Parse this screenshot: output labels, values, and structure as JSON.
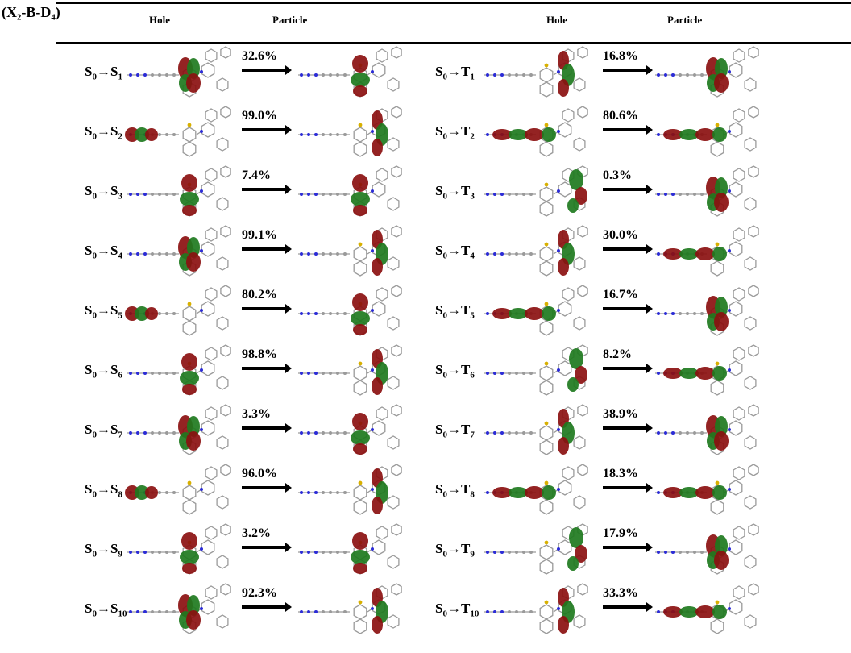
{
  "title": "(X₂-B-D₄)",
  "headers": {
    "hole": "Hole",
    "particle": "Particle"
  },
  "colors": {
    "positive_lobe": "#8b1010",
    "negative_lobe": "#1e7a1e",
    "nitrogen": "#2b2bd6",
    "sulfur": "#d8b000",
    "skeleton": "#9a9a9a"
  },
  "left_rows": [
    {
      "state": "S",
      "index": "1",
      "percent": "32.6%"
    },
    {
      "state": "S",
      "index": "2",
      "percent": "99.0%"
    },
    {
      "state": "S",
      "index": "3",
      "percent": "7.4%"
    },
    {
      "state": "S",
      "index": "4",
      "percent": "99.1%"
    },
    {
      "state": "S",
      "index": "5",
      "percent": "80.2%"
    },
    {
      "state": "S",
      "index": "6",
      "percent": "98.8%"
    },
    {
      "state": "S",
      "index": "7",
      "percent": "3.3%"
    },
    {
      "state": "S",
      "index": "8",
      "percent": "96.0%"
    },
    {
      "state": "S",
      "index": "9",
      "percent": "3.2%"
    },
    {
      "state": "S",
      "index": "10",
      "percent": "92.3%"
    }
  ],
  "right_rows": [
    {
      "state": "T",
      "index": "1",
      "percent": "16.8%"
    },
    {
      "state": "T",
      "index": "2",
      "percent": "80.6%"
    },
    {
      "state": "T",
      "index": "3",
      "percent": "0.3%"
    },
    {
      "state": "T",
      "index": "4",
      "percent": "30.0%"
    },
    {
      "state": "T",
      "index": "5",
      "percent": "16.7%"
    },
    {
      "state": "T",
      "index": "6",
      "percent": "8.2%"
    },
    {
      "state": "T",
      "index": "7",
      "percent": "38.9%"
    },
    {
      "state": "T",
      "index": "8",
      "percent": "18.3%"
    },
    {
      "state": "T",
      "index": "9",
      "percent": "17.9%"
    },
    {
      "state": "T",
      "index": "10",
      "percent": "33.3%"
    }
  ]
}
